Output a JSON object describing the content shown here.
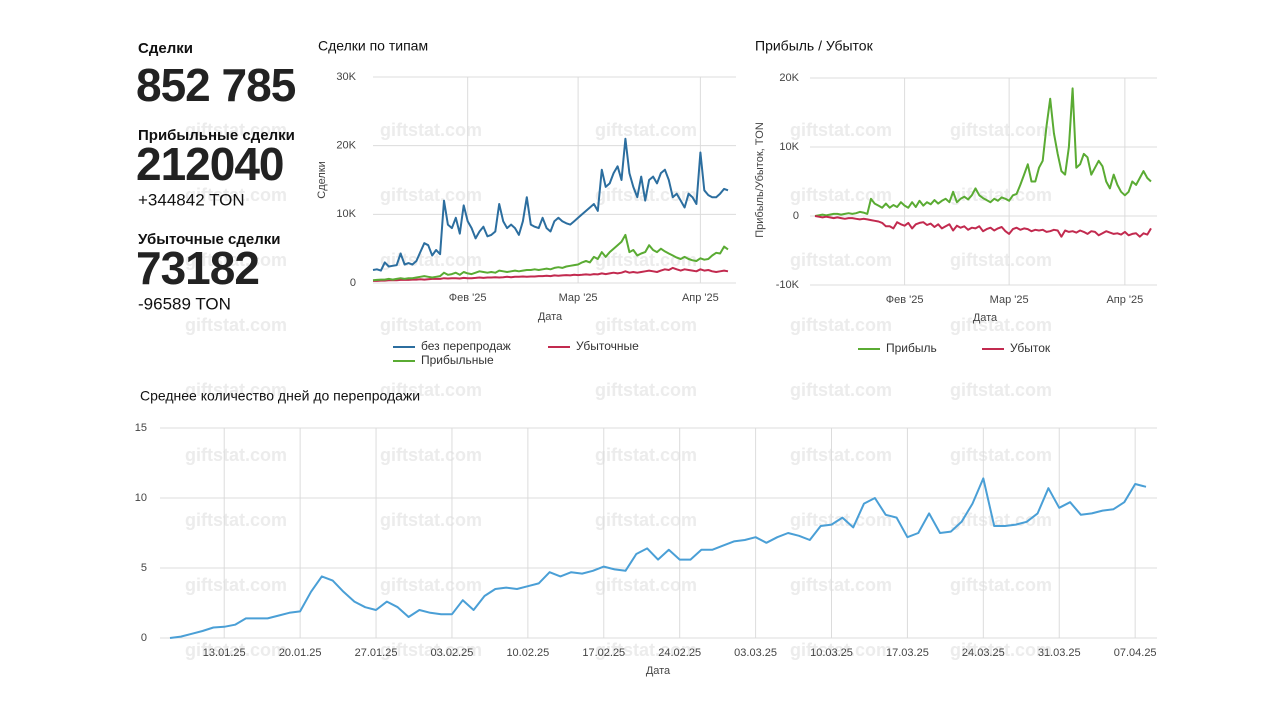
{
  "kpis": [
    {
      "label": "Сделки",
      "value": "852 785"
    },
    {
      "label": "Прибыльные сделки",
      "value": "212040",
      "delta": "+344842 TON"
    },
    {
      "label": "Убыточные сделки",
      "value": "73182",
      "delta": "-96589 TON"
    }
  ],
  "watermark": "giftstat.com",
  "chart_data": [
    {
      "type": "line",
      "title": "Сделки по типам",
      "xlabel": "Дата",
      "ylabel": "Сделки",
      "grid": true,
      "categories": [
        null,
        null,
        null,
        null,
        null,
        null,
        null,
        null,
        null,
        null,
        null,
        null,
        null,
        null,
        null,
        null,
        null,
        null,
        null,
        null,
        null,
        null,
        null,
        null,
        "Фев '25",
        null,
        null,
        null,
        null,
        null,
        null,
        null,
        null,
        null,
        null,
        null,
        null,
        null,
        null,
        null,
        null,
        null,
        null,
        null,
        null,
        null,
        null,
        null,
        null,
        null,
        null,
        null,
        "Мар '25",
        null,
        null,
        null,
        null,
        null,
        null,
        null,
        null,
        null,
        null,
        null,
        null,
        null,
        null,
        null,
        null,
        null,
        null,
        null,
        null,
        null,
        null,
        null,
        null,
        null,
        null,
        null,
        null,
        null,
        null,
        "Апр '25",
        null,
        null,
        null,
        null,
        null,
        null,
        null
      ],
      "ylim": [
        0,
        30000
      ],
      "yticks": [
        {
          "value": 0,
          "label": "0"
        },
        {
          "value": 10000,
          "label": "10K"
        },
        {
          "value": 20000,
          "label": "20K"
        },
        {
          "value": 30000,
          "label": "30K"
        }
      ],
      "series": [
        {
          "name": "без перепродаж",
          "color": "#2c6e9f",
          "values": [
            1900,
            2000,
            1800,
            3000,
            2400,
            2500,
            2600,
            4300,
            2700,
            2900,
            2700,
            3200,
            4500,
            5800,
            5500,
            4000,
            4800,
            4200,
            12000,
            8500,
            8000,
            9500,
            7200,
            11300,
            9000,
            8000,
            6500,
            7500,
            8200,
            6800,
            7000,
            7500,
            11500,
            9000,
            8000,
            8500,
            8000,
            7000,
            9000,
            12500,
            8500,
            8200,
            8000,
            9500,
            8000,
            7500,
            9000,
            9500,
            9000,
            8700,
            8500,
            9000,
            9500,
            10000,
            10500,
            11000,
            11500,
            10500,
            16500,
            14000,
            14500,
            16000,
            17000,
            15000,
            21000,
            16000,
            14000,
            12500,
            15500,
            12000,
            15000,
            15500,
            14500,
            16000,
            16500,
            15000,
            12500,
            13000,
            12000,
            11000,
            13000,
            12500,
            11500,
            19000,
            13500,
            12800,
            12500,
            12500,
            13000,
            13700,
            13500
          ]
        },
        {
          "name": "Убыточные",
          "color": "#c22a4f",
          "values": [
            300,
            300,
            350,
            350,
            400,
            400,
            400,
            450,
            450,
            450,
            500,
            500,
            550,
            500,
            550,
            600,
            600,
            600,
            700,
            650,
            700,
            700,
            650,
            750,
            700,
            700,
            750,
            800,
            750,
            800,
            800,
            850,
            800,
            850,
            900,
            850,
            900,
            900,
            950,
            900,
            950,
            950,
            1000,
            1000,
            1050,
            1000,
            1100,
            1050,
            1100,
            1150,
            1100,
            1200,
            1150,
            1200,
            1250,
            1200,
            1300,
            1250,
            1400,
            1300,
            1400,
            1500,
            1400,
            1500,
            1700,
            1500,
            1600,
            1500,
            1600,
            1700,
            1800,
            1700,
            1600,
            1800,
            2000,
            1900,
            2200,
            2000,
            1800,
            2000,
            1900,
            1800,
            1700,
            2000,
            1800,
            1900,
            1700,
            1600,
            1700,
            1800,
            1700
          ]
        },
        {
          "name": "Прибыльные",
          "color": "#5aab33",
          "values": [
            400,
            450,
            500,
            500,
            600,
            500,
            600,
            700,
            600,
            700,
            700,
            800,
            900,
            1000,
            900,
            800,
            900,
            1000,
            1500,
            1200,
            1300,
            1500,
            1200,
            1600,
            1400,
            1300,
            1500,
            1700,
            1600,
            1500,
            1600,
            1500,
            1800,
            1700,
            1600,
            1700,
            1800,
            1700,
            1800,
            1900,
            1900,
            2000,
            1900,
            2000,
            2100,
            2000,
            2200,
            2300,
            2200,
            2400,
            2500,
            2600,
            2700,
            3000,
            3200,
            3000,
            3800,
            3500,
            4500,
            3800,
            4500,
            5000,
            5500,
            6000,
            7000,
            4500,
            4800,
            4000,
            4300,
            4500,
            5500,
            4800,
            4500,
            5000,
            4600,
            4300,
            4000,
            3700,
            3500,
            3800,
            3500,
            3300,
            3200,
            3600,
            3400,
            3500,
            4000,
            4400,
            4300,
            5300,
            4900
          ]
        }
      ]
    },
    {
      "type": "line",
      "title": "Прибыль / Убыток",
      "xlabel": "Дата",
      "ylabel": "Прибыль/Убыток, TON",
      "grid": true,
      "categories": [
        null,
        null,
        null,
        null,
        null,
        null,
        null,
        null,
        null,
        null,
        null,
        null,
        null,
        null,
        null,
        null,
        null,
        null,
        null,
        null,
        null,
        null,
        null,
        null,
        "Фев '25",
        null,
        null,
        null,
        null,
        null,
        null,
        null,
        null,
        null,
        null,
        null,
        null,
        null,
        null,
        null,
        null,
        null,
        null,
        null,
        null,
        null,
        null,
        null,
        null,
        null,
        null,
        null,
        "Мар '25",
        null,
        null,
        null,
        null,
        null,
        null,
        null,
        null,
        null,
        null,
        null,
        null,
        null,
        null,
        null,
        null,
        null,
        null,
        null,
        null,
        null,
        null,
        null,
        null,
        null,
        null,
        null,
        null,
        null,
        null,
        "Апр '25",
        null,
        null,
        null,
        null,
        null,
        null,
        null
      ],
      "ylim": [
        -10000,
        20000
      ],
      "yticks": [
        {
          "value": -10000,
          "label": "-10K"
        },
        {
          "value": 0,
          "label": "0"
        },
        {
          "value": 10000,
          "label": "10K"
        },
        {
          "value": 20000,
          "label": "20K"
        }
      ],
      "series": [
        {
          "name": "Прибыль",
          "color": "#5aab33",
          "values": [
            0,
            100,
            200,
            100,
            200,
            300,
            300,
            200,
            300,
            400,
            300,
            400,
            600,
            500,
            300,
            2500,
            1800,
            1500,
            1200,
            1800,
            1200,
            1600,
            1300,
            2000,
            1500,
            1200,
            2000,
            1300,
            2200,
            1500,
            2000,
            1700,
            2300,
            1800,
            2200,
            2500,
            2000,
            3500,
            2000,
            2500,
            2800,
            2400,
            3000,
            4000,
            3000,
            2600,
            2300,
            2000,
            2500,
            2200,
            2700,
            2500,
            2200,
            3000,
            3200,
            4500,
            6000,
            7500,
            5000,
            5000,
            7000,
            8000,
            13000,
            17000,
            12000,
            9000,
            6500,
            6000,
            10000,
            18500,
            7000,
            7500,
            9000,
            8500,
            6000,
            7000,
            8000,
            7200,
            5000,
            4000,
            6000,
            4500,
            3500,
            3000,
            3500,
            5000,
            4500,
            5500,
            6500,
            5500,
            5000
          ]
        },
        {
          "name": "Убыток",
          "color": "#c22a4f",
          "values": [
            0,
            -100,
            -200,
            -100,
            -200,
            -300,
            -200,
            -300,
            -400,
            -300,
            -300,
            -400,
            -500,
            -400,
            -500,
            -600,
            -700,
            -800,
            -1000,
            -1500,
            -1500,
            -1800,
            -900,
            -1200,
            -1400,
            -1000,
            -1800,
            -1200,
            -1000,
            -900,
            -1300,
            -1100,
            -1600,
            -1200,
            -1800,
            -1500,
            -1200,
            -2100,
            -1400,
            -1700,
            -1500,
            -2000,
            -1700,
            -1800,
            -1500,
            -2200,
            -1900,
            -1700,
            -2100,
            -1800,
            -1600,
            -2200,
            -2600,
            -1900,
            -1700,
            -2000,
            -1800,
            -1900,
            -2200,
            -2000,
            -2100,
            -2000,
            -2300,
            -2200,
            -2000,
            -2100,
            -3000,
            -2100,
            -2300,
            -2200,
            -2400,
            -2100,
            -2300,
            -2600,
            -2200,
            -2300,
            -2800,
            -2500,
            -2200,
            -2400,
            -2600,
            -2500,
            -2700,
            -2300,
            -2800,
            -2600,
            -2500,
            -3000,
            -2500,
            -2700,
            -1800
          ]
        }
      ]
    },
    {
      "type": "line",
      "title": "Среднее количество дней до перепродажи",
      "xlabel": "Дата",
      "grid": true,
      "color": "#4a9fd6",
      "categories": [
        null,
        null,
        null,
        null,
        null,
        "13.01.25",
        null,
        null,
        null,
        null,
        null,
        null,
        "20.01.25",
        null,
        null,
        null,
        null,
        null,
        null,
        "27.01.25",
        null,
        null,
        null,
        null,
        null,
        null,
        "03.02.25",
        null,
        null,
        null,
        null,
        null,
        null,
        "10.02.25",
        null,
        null,
        null,
        null,
        null,
        null,
        "17.02.25",
        null,
        null,
        null,
        null,
        null,
        null,
        "24.02.25",
        null,
        null,
        null,
        null,
        null,
        null,
        "03.03.25",
        null,
        null,
        null,
        null,
        null,
        null,
        "10.03.25",
        null,
        null,
        null,
        null,
        null,
        null,
        "17.03.25",
        null,
        null,
        null,
        null,
        null,
        null,
        "24.03.25",
        null,
        null,
        null,
        null,
        null,
        null,
        "31.03.25",
        null,
        null,
        null,
        null,
        null,
        null,
        "07.04.25",
        null
      ],
      "ylim": [
        0,
        15
      ],
      "yticks": [
        0,
        5,
        10,
        15
      ],
      "values": [
        0,
        0.1,
        0.3,
        0.5,
        0.75,
        0.8,
        0.95,
        1.4,
        1.4,
        1.4,
        1.6,
        1.8,
        1.9,
        3.3,
        4.4,
        4.1,
        3.3,
        2.6,
        2.2,
        2.0,
        2.6,
        2.2,
        1.5,
        2.0,
        1.8,
        1.7,
        1.7,
        2.7,
        2.0,
        3.0,
        3.5,
        3.6,
        3.5,
        3.7,
        3.9,
        4.7,
        4.4,
        4.7,
        4.6,
        4.8,
        5.1,
        4.9,
        4.8,
        6.0,
        6.4,
        5.6,
        6.3,
        5.6,
        5.6,
        6.3,
        6.3,
        6.6,
        6.9,
        7.0,
        7.2,
        6.8,
        7.2,
        7.5,
        7.3,
        7.0,
        8.0,
        8.1,
        8.6,
        7.9,
        9.6,
        10.0,
        8.8,
        8.6,
        7.2,
        7.5,
        8.9,
        7.5,
        7.6,
        8.3,
        9.6,
        11.4,
        8.0,
        8.0,
        8.1,
        8.3,
        8.9,
        10.7,
        9.3,
        9.7,
        8.8,
        8.9,
        9.1,
        9.2,
        9.7,
        11.0,
        10.8
      ]
    }
  ]
}
